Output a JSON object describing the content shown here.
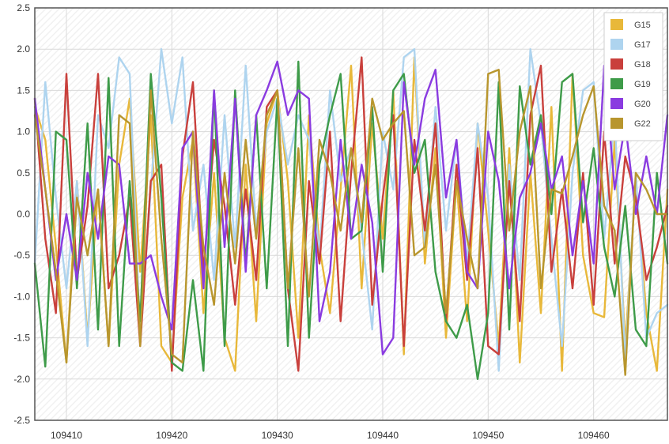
{
  "chart_data": {
    "type": "line",
    "title": "",
    "xlabel": "",
    "ylabel": "",
    "xlim": [
      109407,
      109467
    ],
    "ylim": [
      -2.5,
      2.5
    ],
    "xticks": [
      109410,
      109420,
      109430,
      109440,
      109450,
      109460
    ],
    "xtick_labels": [
      "109410",
      "109420",
      "109430",
      "109440",
      "109450",
      "109460"
    ],
    "yticks": [
      -2.5,
      -2.0,
      -1.5,
      -1.0,
      -0.5,
      0.0,
      0.5,
      1.0,
      1.5,
      2.0,
      2.5
    ],
    "ytick_labels": [
      "-2.5",
      "-2.0",
      "-1.5",
      "-1.0",
      "-0.5",
      "0.0",
      "0.5",
      "1.0",
      "1.5",
      "2.0",
      "2.5"
    ],
    "grid": true,
    "legend_position": "top-right",
    "x": [
      109407,
      109408,
      109409,
      109410,
      109411,
      109412,
      109413,
      109414,
      109415,
      109416,
      109417,
      109418,
      109419,
      109420,
      109421,
      109422,
      109423,
      109424,
      109425,
      109426,
      109427,
      109428,
      109429,
      109430,
      109431,
      109432,
      109433,
      109434,
      109435,
      109436,
      109437,
      109438,
      109439,
      109440,
      109441,
      109442,
      109443,
      109444,
      109445,
      109446,
      109447,
      109448,
      109449,
      109450,
      109451,
      109452,
      109453,
      109454,
      109455,
      109456,
      109457,
      109458,
      109459,
      109460,
      109461,
      109462,
      109463,
      109464,
      109465,
      109466,
      109467
    ],
    "series": [
      {
        "name": "G15",
        "color": "#e8b83a",
        "values": [
          1.3,
          0.9,
          -0.4,
          -1.8,
          0.4,
          -1.5,
          0.3,
          -1.6,
          0.6,
          1.4,
          -0.7,
          1.2,
          -1.6,
          -1.8,
          0.2,
          0.9,
          -1.2,
          0.5,
          -1.5,
          -1.9,
          0.6,
          -1.3,
          1.1,
          1.5,
          0.4,
          -1.5,
          1.2,
          -0.4,
          -1.2,
          0.3,
          1.8,
          -0.9,
          1.1,
          -0.3,
          1.5,
          -1.7,
          1.9,
          -0.6,
          0.8,
          -1.5,
          0.4,
          -1.3,
          1.1,
          -0.2,
          -1.6,
          0.8,
          -1.8,
          0.5,
          -1.2,
          1.3,
          -1.9,
          1.7,
          -0.5,
          -1.2,
          -1.25,
          0.9,
          -1.6,
          0.4,
          -1.2,
          -1.9,
          0.3
        ]
      },
      {
        "name": "G17",
        "color": "#aed4ef",
        "values": [
          -0.6,
          1.6,
          0.2,
          -0.9,
          0.4,
          -1.6,
          1.2,
          0.8,
          1.9,
          1.7,
          -1.5,
          0.3,
          2.0,
          1.1,
          1.9,
          -0.2,
          0.6,
          -0.8,
          1.2,
          -0.4,
          1.8,
          -0.2,
          1.0,
          1.4,
          0.6,
          1.2,
          0.9,
          -0.5,
          1.5,
          0.4,
          0.8,
          -0.2,
          -1.4,
          1.0,
          0.3,
          1.9,
          2.0,
          -0.4,
          1.3,
          -0.2,
          0.9,
          -0.6,
          1.1,
          0.2,
          -1.9,
          0.6,
          -0.8,
          2.0,
          1.1,
          -0.3,
          -1.6,
          0.5,
          1.5,
          1.6,
          -0.3,
          1.2,
          -1.8,
          0.5,
          -1.5,
          -1.2,
          -1.1
        ]
      },
      {
        "name": "G18",
        "color": "#c9403c",
        "values": [
          1.4,
          -0.3,
          -1.2,
          1.7,
          -0.8,
          0.1,
          1.7,
          -0.9,
          -0.5,
          0.2,
          -1.6,
          0.4,
          0.6,
          -1.9,
          0.7,
          1.6,
          -0.7,
          0.9,
          0.1,
          -1.1,
          0.3,
          -0.8,
          1.3,
          1.5,
          -0.9,
          -1.9,
          0.4,
          -0.6,
          1.0,
          -1.3,
          0.5,
          1.9,
          -1.1,
          0.2,
          1.2,
          -1.6,
          0.9,
          -0.2,
          1.1,
          -1.3,
          0.6,
          -0.8,
          0.8,
          -1.6,
          -1.7,
          0.4,
          -1.3,
          1.2,
          1.8,
          -0.7,
          0.3,
          -0.9,
          0.5,
          -1.1,
          1.0,
          -0.6,
          0.7,
          0.2,
          -0.8,
          -0.4,
          0.1
        ]
      },
      {
        "name": "G19",
        "color": "#3e9b49",
        "values": [
          -0.6,
          -1.85,
          1.0,
          0.9,
          -0.9,
          1.1,
          -1.4,
          1.65,
          -1.6,
          0.4,
          -1.3,
          1.7,
          0.2,
          -1.8,
          -1.9,
          -0.8,
          -1.9,
          1.5,
          -1.6,
          1.5,
          -0.6,
          1.2,
          -0.9,
          1.4,
          -1.6,
          1.85,
          -1.5,
          0.6,
          1.2,
          1.7,
          -0.3,
          -0.2,
          1.3,
          -0.7,
          1.5,
          1.7,
          0.5,
          0.9,
          -0.7,
          -1.3,
          -1.5,
          -1.1,
          -2.0,
          -1.2,
          1.6,
          -1.4,
          1.55,
          0.6,
          1.2,
          0.0,
          1.6,
          1.7,
          -0.1,
          0.8,
          -0.4,
          -1.0,
          0.1,
          -1.4,
          -1.6,
          0.5,
          -0.6
        ]
      },
      {
        "name": "G20",
        "color": "#8a3be0",
        "values": [
          1.4,
          0.3,
          -0.8,
          0.0,
          -0.8,
          0.5,
          -0.3,
          0.7,
          0.6,
          -0.6,
          -0.6,
          -0.5,
          -1.0,
          -1.4,
          0.8,
          1.0,
          -0.9,
          1.5,
          -0.4,
          1.4,
          -0.7,
          1.2,
          1.5,
          1.85,
          1.2,
          1.5,
          1.4,
          -1.3,
          -0.7,
          0.9,
          -0.3,
          0.6,
          -0.1,
          -1.7,
          -1.5,
          1.6,
          0.6,
          1.4,
          1.75,
          0.2,
          0.9,
          -0.7,
          -0.9,
          1.0,
          0.4,
          -0.9,
          0.2,
          0.5,
          1.1,
          0.3,
          0.7,
          -0.5,
          0.4,
          -0.6,
          1.8,
          0.3,
          1.1,
          0.0,
          0.7,
          0.0,
          1.2
        ]
      },
      {
        "name": "G22",
        "color": "#b8962e",
        "values": [
          1.2,
          0.3,
          -0.7,
          -1.8,
          0.2,
          -0.5,
          0.3,
          -1.6,
          1.2,
          1.1,
          -1.6,
          1.5,
          -0.3,
          -1.7,
          -1.8,
          1.0,
          -0.4,
          -1.1,
          0.5,
          -0.6,
          0.9,
          -0.3,
          1.2,
          1.5,
          -0.9,
          0.8,
          -1.0,
          0.9,
          0.5,
          -0.2,
          0.8,
          -0.1,
          1.4,
          0.9,
          1.1,
          1.25,
          -0.5,
          -0.4,
          0.6,
          -1.2,
          0.4,
          -0.3,
          -0.9,
          1.7,
          1.75,
          -0.2,
          1.0,
          1.55,
          -0.9,
          0.3,
          0.25,
          0.7,
          1.2,
          1.55,
          0.1,
          -0.2,
          -1.95,
          0.5,
          0.3,
          0.0,
          0.0
        ]
      }
    ]
  }
}
